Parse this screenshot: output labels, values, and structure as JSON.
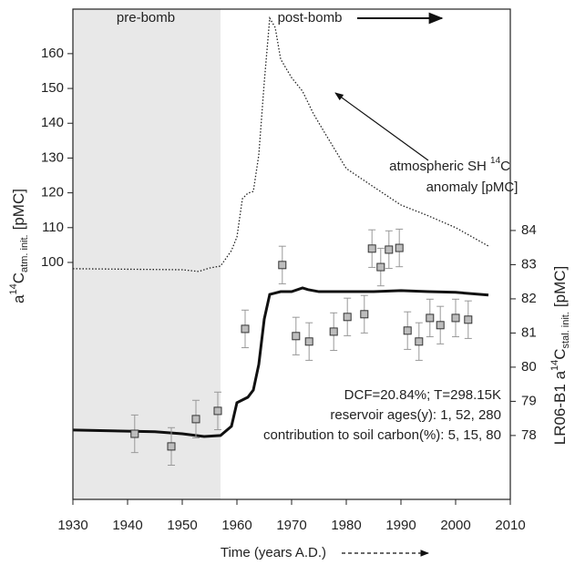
{
  "chart_data": {
    "type": "line",
    "xlabel": "Time (years A.D.)",
    "ylabel": [
      "a",
      "14",
      "C",
      "atm. init.",
      "[pMC]"
    ],
    "y2label": [
      "LR06-B1 a",
      "14",
      "C",
      "stal. init.",
      "[pMC]"
    ],
    "xlim": [
      1930,
      2010
    ],
    "xticks": [
      1930,
      1940,
      1950,
      1960,
      1970,
      1980,
      1990,
      2000,
      2010
    ],
    "ylim": [
      31.9,
      172.8
    ],
    "yticks": [
      100,
      110,
      120,
      130,
      140,
      150,
      160
    ],
    "y2lim": [
      76.13,
      90.48
    ],
    "y2ticks": [
      78,
      79,
      80,
      81,
      82,
      83,
      84
    ],
    "shaded_xrange": [
      1930,
      1957
    ],
    "annotations": {
      "pre": "pre-bomb",
      "post": "post-bomb",
      "atm": [
        "atmospheric SH ",
        "14",
        "C",
        "anomaly [pMC]"
      ],
      "params": [
        "DCF=20.84%; T=298.15K",
        "reservoir ages(y): 1, 52, 280",
        "contribution to soil carbon(%): 5, 15, 80"
      ]
    },
    "series": [
      {
        "kind": "line",
        "style": "dotted",
        "color": "#222",
        "axis": "y",
        "x": [
          1930,
          1950,
          1953,
          1955,
          1957,
          1959,
          1960,
          1961,
          1962,
          1963,
          1964,
          1965,
          1966,
          1967,
          1968,
          1970,
          1972,
          1974,
          1976,
          1980,
          1985,
          1990,
          1995,
          2000,
          2006
        ],
        "values": [
          98.2,
          97.9,
          97.4,
          98.4,
          98.95,
          103.4,
          107.3,
          118.3,
          119.9,
          120.4,
          130.9,
          151.8,
          170.2,
          167.5,
          158.4,
          153.1,
          149.2,
          142.7,
          137.4,
          127,
          121.7,
          116.5,
          113.4,
          110,
          104.7
        ]
      },
      {
        "kind": "line",
        "style": "solid",
        "color": "#111",
        "axis": "y2",
        "x": [
          1930,
          1945,
          1950,
          1954,
          1957,
          1959,
          1960,
          1962,
          1963,
          1964,
          1965,
          1966,
          1968,
          1970,
          1972,
          1973,
          1975,
          1980,
          1985,
          1990,
          1995,
          2000,
          2006
        ],
        "values": [
          78.16,
          78.11,
          78.05,
          77.97,
          78.0,
          78.27,
          78.96,
          79.12,
          79.33,
          80.08,
          81.41,
          82.13,
          82.21,
          82.21,
          82.32,
          82.27,
          82.21,
          82.21,
          82.21,
          82.24,
          82.21,
          82.19,
          82.11
        ]
      },
      {
        "kind": "points",
        "color": "#bdbdbd",
        "axis": "y2",
        "x": [
          1941.3,
          1948,
          1952.5,
          1956.5,
          1961.5,
          1968.3,
          1970.8,
          1973.2,
          1977.7,
          1980.2,
          1983.3,
          1984.7,
          1986.3,
          1987.8,
          1989.7,
          1991.2,
          1993.3,
          1995.3,
          1997.2,
          2000,
          2002.3
        ],
        "values": [
          78.05,
          77.68,
          78.48,
          78.72,
          81.12,
          82.99,
          80.91,
          80.75,
          81.04,
          81.47,
          81.55,
          83.47,
          82.93,
          83.44,
          83.49,
          81.07,
          80.75,
          81.44,
          81.23,
          81.44,
          81.39
        ],
        "errors": [
          0.55,
          0.55,
          0.55,
          0.55,
          0.55,
          0.55,
          0.55,
          0.55,
          0.55,
          0.55,
          0.55,
          0.55,
          0.55,
          0.55,
          0.55,
          0.55,
          0.55,
          0.55,
          0.55,
          0.55,
          0.55
        ]
      }
    ]
  }
}
